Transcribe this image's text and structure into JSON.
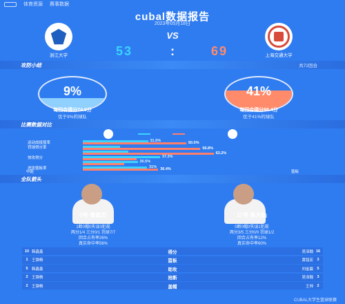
{
  "topbar": {
    "brand": "体育资源",
    "nav": "赛事数据"
  },
  "header": {
    "title": "cubal数据报告",
    "date": "2023年05月18日"
  },
  "match": {
    "vs": "VS",
    "home": {
      "name": "浙江大学",
      "score": "53",
      "color": "#1f5fbf"
    },
    "away": {
      "name": "上海交通大学",
      "score": "69",
      "color": "#d84a3a"
    },
    "colon": ":"
  },
  "sections": {
    "attack": {
      "title": "攻防小结",
      "meta": "共72回合"
    },
    "compare": {
      "title": "比赛数据对比"
    },
    "leaders": {
      "title": "全队箭头"
    }
  },
  "attack": {
    "home": {
      "pct": "9%",
      "fraction": 0.09,
      "line1": "每回合得分74.0分",
      "line2": "优于9%的球队",
      "color": "#8fd0ff"
    },
    "away": {
      "pct": "41%",
      "fraction": 0.41,
      "line1": "每回合得分95.4分",
      "line2": "优于41%的球队",
      "color": "#ff8b6b"
    }
  },
  "legend": {
    "home_color": "#3ad4ff",
    "away_color": "#ff7f6b"
  },
  "comparison": {
    "rows": [
      {
        "label": "运动战投篮率",
        "home": 0.315,
        "away": 0.5,
        "home_text": "31.5%",
        "away_text": "50.0%"
      },
      {
        "label": "罚球得分率",
        "home": 0.18,
        "away": 0.568,
        "home_text": "",
        "away_text": "56.8%"
      },
      {
        "label": "",
        "home": 0.22,
        "away": 0.632,
        "home_text": "",
        "away_text": "63.2%"
      },
      {
        "label": "快攻得分",
        "home": 0.373,
        "away": 0.26,
        "home_text": "37.3%",
        "away_text": ""
      },
      {
        "label": "",
        "home": 0.265,
        "away": 0.2,
        "home_text": "26.5%",
        "away_text": ""
      },
      {
        "label": "进攻篮板率",
        "home": 0.31,
        "away": 0.364,
        "home_text": "31%",
        "away_text": "36.4%"
      }
    ],
    "note_left": "中距",
    "note_right": "篮板"
  },
  "players": [
    {
      "name": "0号·曹庭杰",
      "line1": "9分3篮板3助",
      "line2": "1断0帽0失误3犯规",
      "line3": "两分1/4 三分0/1 罚球7/7",
      "line4": "回合占有率26%",
      "line5": "真实命中率56%",
      "jersey_color": "#f3f3f3"
    },
    {
      "name": "17号·陈天灿",
      "line1": "7分3篮板1助",
      "line2": "0断0帽0失误1犯规",
      "line3": "两分3/5 三分0/0 罚球1/2",
      "line4": "回合占有率12%",
      "line5": "真实命中率60%",
      "jersey_color": "#f3f3f3"
    }
  ],
  "leaders": [
    {
      "home_num": "10",
      "home_name": "韩鑫鑫",
      "category": "得分",
      "away_name": "吴泽翰",
      "away_num": "16"
    },
    {
      "home_num": "1",
      "home_name": "王钢杨",
      "category": "篮板",
      "away_name": "黄铭宏",
      "away_num": "3"
    },
    {
      "home_num": "5",
      "home_name": "韩鑫鑫",
      "category": "助攻",
      "away_name": "刘金赢",
      "away_num": "5"
    },
    {
      "home_num": "2",
      "home_name": "王钢杨",
      "category": "抢断",
      "away_name": "吴泽翰",
      "away_num": "3"
    },
    {
      "home_num": "2",
      "home_name": "王钢杨",
      "category": "盖帽",
      "away_name": "王帅",
      "away_num": "2"
    }
  ],
  "footer": "CUBAL大学生篮球联赛"
}
